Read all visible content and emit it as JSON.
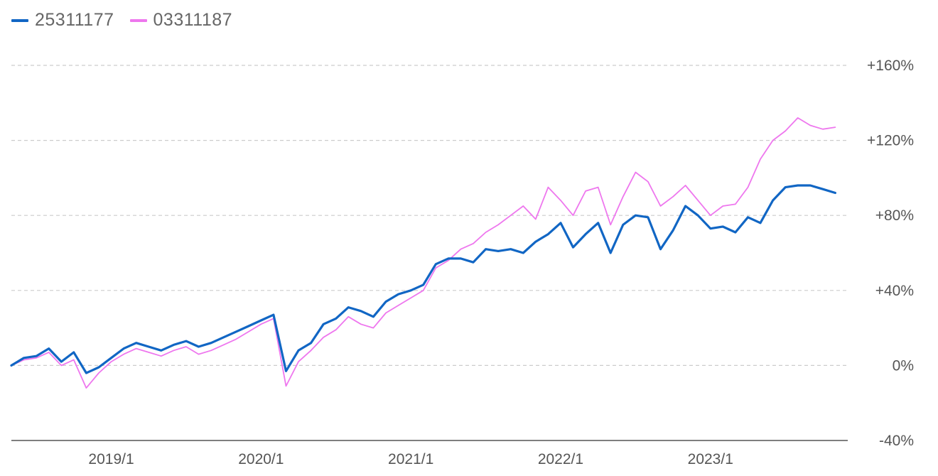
{
  "legend": {
    "series_a_label": "25311177",
    "series_b_label": "03311187"
  },
  "colors": {
    "series_a": "#1166c4",
    "series_b": "#ee77ee",
    "grid": "#cccccc",
    "axis": "#555555",
    "text": "#555555"
  },
  "chart_data": {
    "type": "line",
    "xlim": [
      "2018-05",
      "2023-12"
    ],
    "ylim": [
      -40,
      160
    ],
    "y_ticks": [
      160,
      120,
      80,
      40,
      0,
      -40
    ],
    "y_tick_labels": [
      "+160%",
      "+120%",
      "+80%",
      "+40%",
      "0%",
      "-40%"
    ],
    "x_ticks": [
      "2019-01",
      "2020-01",
      "2021-01",
      "2022-01",
      "2023-01"
    ],
    "x_tick_labels": [
      "2019/1",
      "2020/1",
      "2021/1",
      "2022/1",
      "2023/1"
    ],
    "y_grid": "dashed",
    "legend_position": "top-left",
    "series": [
      {
        "name": "25311177",
        "x": [
          "2018-05",
          "2018-06",
          "2018-07",
          "2018-08",
          "2018-09",
          "2018-10",
          "2018-11",
          "2018-12",
          "2019-01",
          "2019-02",
          "2019-03",
          "2019-04",
          "2019-05",
          "2019-06",
          "2019-07",
          "2019-08",
          "2019-09",
          "2019-10",
          "2019-11",
          "2019-12",
          "2020-01",
          "2020-02",
          "2020-03",
          "2020-04",
          "2020-05",
          "2020-06",
          "2020-07",
          "2020-08",
          "2020-09",
          "2020-10",
          "2020-11",
          "2020-12",
          "2021-01",
          "2021-02",
          "2021-03",
          "2021-04",
          "2021-05",
          "2021-06",
          "2021-07",
          "2021-08",
          "2021-09",
          "2021-10",
          "2021-11",
          "2021-12",
          "2022-01",
          "2022-02",
          "2022-03",
          "2022-04",
          "2022-05",
          "2022-06",
          "2022-07",
          "2022-08",
          "2022-09",
          "2022-10",
          "2022-11",
          "2022-12",
          "2023-01",
          "2023-02",
          "2023-03",
          "2023-04",
          "2023-05",
          "2023-06",
          "2023-07",
          "2023-08",
          "2023-09",
          "2023-10",
          "2023-11"
        ],
        "y": [
          0,
          4,
          5,
          9,
          2,
          7,
          -4,
          -1,
          4,
          9,
          12,
          10,
          8,
          11,
          13,
          10,
          12,
          15,
          18,
          21,
          24,
          27,
          -3,
          8,
          12,
          22,
          25,
          31,
          29,
          26,
          34,
          38,
          40,
          43,
          54,
          57,
          57,
          55,
          62,
          61,
          62,
          60,
          66,
          70,
          76,
          63,
          70,
          76,
          60,
          75,
          80,
          79,
          62,
          72,
          85,
          80,
          73,
          74,
          71,
          79,
          76,
          88,
          95,
          96,
          96,
          94,
          92
        ]
      },
      {
        "name": "03311187",
        "x": [
          "2018-05",
          "2018-06",
          "2018-07",
          "2018-08",
          "2018-09",
          "2018-10",
          "2018-11",
          "2018-12",
          "2019-01",
          "2019-02",
          "2019-03",
          "2019-04",
          "2019-05",
          "2019-06",
          "2019-07",
          "2019-08",
          "2019-09",
          "2019-10",
          "2019-11",
          "2019-12",
          "2020-01",
          "2020-02",
          "2020-03",
          "2020-04",
          "2020-05",
          "2020-06",
          "2020-07",
          "2020-08",
          "2020-09",
          "2020-10",
          "2020-11",
          "2020-12",
          "2021-01",
          "2021-02",
          "2021-03",
          "2021-04",
          "2021-05",
          "2021-06",
          "2021-07",
          "2021-08",
          "2021-09",
          "2021-10",
          "2021-11",
          "2021-12",
          "2022-01",
          "2022-02",
          "2022-03",
          "2022-04",
          "2022-05",
          "2022-06",
          "2022-07",
          "2022-08",
          "2022-09",
          "2022-10",
          "2022-11",
          "2022-12",
          "2023-01",
          "2023-02",
          "2023-03",
          "2023-04",
          "2023-05",
          "2023-06",
          "2023-07",
          "2023-08",
          "2023-09",
          "2023-10",
          "2023-11"
        ],
        "y": [
          0,
          3,
          4,
          7,
          0,
          3,
          -12,
          -4,
          2,
          6,
          9,
          7,
          5,
          8,
          10,
          6,
          8,
          11,
          14,
          18,
          22,
          25,
          -11,
          2,
          8,
          15,
          19,
          26,
          22,
          20,
          28,
          32,
          36,
          40,
          52,
          56,
          62,
          65,
          71,
          75,
          80,
          85,
          78,
          95,
          88,
          80,
          93,
          95,
          75,
          90,
          103,
          98,
          85,
          90,
          96,
          88,
          80,
          85,
          86,
          95,
          110,
          120,
          125,
          132,
          128,
          126,
          127
        ]
      }
    ]
  }
}
